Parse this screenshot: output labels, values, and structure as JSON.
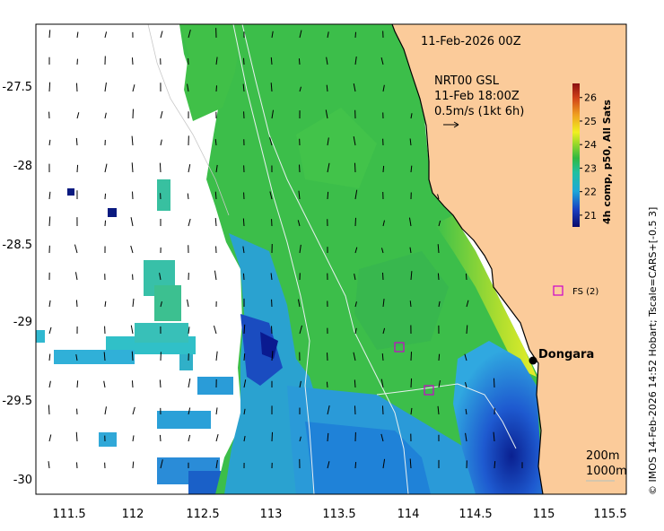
{
  "map": {
    "date_label": "11-Feb-2026 00Z",
    "current_source": "NRT00 GSL",
    "current_time": "11-Feb 18:00Z",
    "scale_label": "0.5m/s (1kt 6h)",
    "place_name": "Dongara",
    "station_label": "FS (2)",
    "depth_contours": [
      "200m",
      "1000m"
    ],
    "side_credit": "© IMOS 14-Feb-2026 14:52 Hobart; Tscale=CARS+[-0.5 3]",
    "colorbar_title": "4h comp, p50, All Sats",
    "colorbar_ticks": [
      "21",
      "22",
      "23",
      "24",
      "25",
      "26"
    ],
    "colorbar_range": [
      20.5,
      26.6
    ],
    "x_ticks": [
      "111.5",
      "112",
      "112.5",
      "113",
      "113.5",
      "114",
      "114.5",
      "115",
      "115.5"
    ],
    "y_ticks": [
      "-27.5",
      "-28",
      "-28.5",
      "-29",
      "-29.5",
      "-30"
    ],
    "colors": {
      "land": "#fbcb9a",
      "no_data": "#ffffff",
      "sst_warm_shelf": "#c8e630",
      "sst_mid": "#3cc04a",
      "sst_cool": "#1e8fd8",
      "sst_cold": "#0b1f8a",
      "marker": "#cc00cc"
    }
  }
}
